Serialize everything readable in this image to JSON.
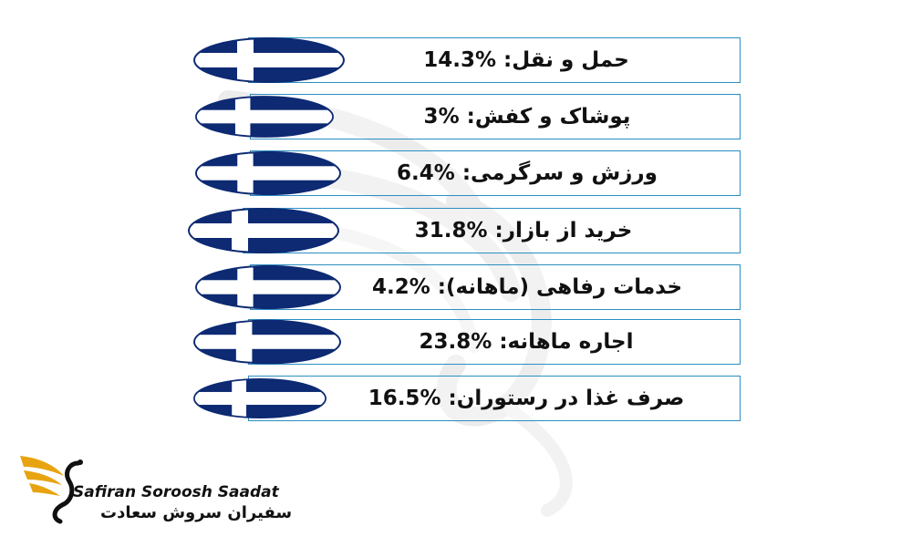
{
  "colors": {
    "flag_blue": "#0d2a73",
    "box_border": "#2a8fc2",
    "logo_gold": "#e8a410"
  },
  "items": [
    {
      "label": "حمل و نقل: %14.3"
    },
    {
      "label": "پوشاک و کفش: %3"
    },
    {
      "label": "ورزش و سرگرمی: %6.4"
    },
    {
      "label": "خرید از بازار: %31.8"
    },
    {
      "label": "خدمات رفاهی (ماهانه): %4.2"
    },
    {
      "label": "اجاره ماهانه: %23.8"
    },
    {
      "label": "صرف غذا در رستوران: %16.5"
    }
  ],
  "logo": {
    "name_en": "Safiran Soroosh Saadat",
    "name_fa": "سفیران سروش سعادت"
  }
}
